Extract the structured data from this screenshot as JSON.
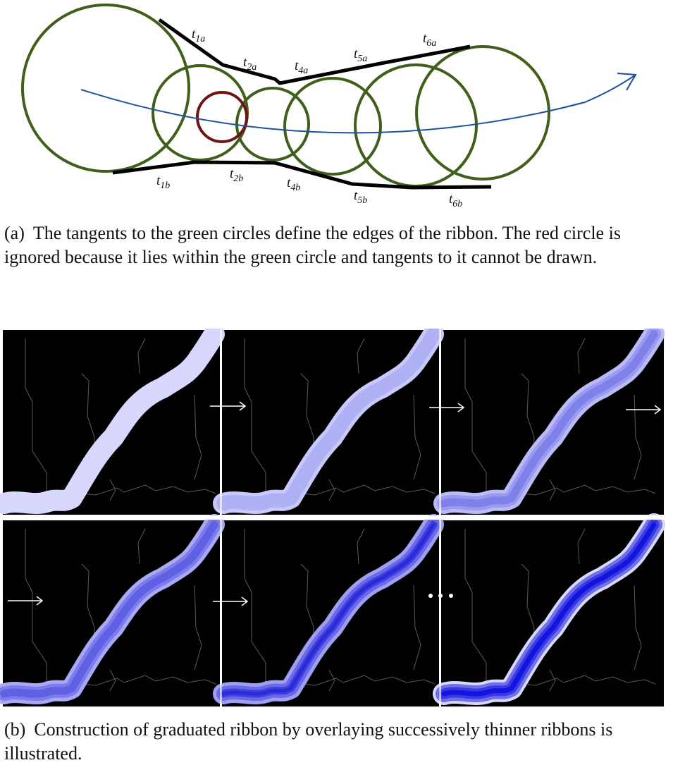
{
  "diagram": {
    "tangent_labels": [
      {
        "t": "t",
        "sub": "1a"
      },
      {
        "t": "t",
        "sub": "2a"
      },
      {
        "t": "t",
        "sub": "4a"
      },
      {
        "t": "t",
        "sub": "5a"
      },
      {
        "t": "t",
        "sub": "6a"
      },
      {
        "t": "t",
        "sub": "1b"
      },
      {
        "t": "t",
        "sub": "2b"
      },
      {
        "t": "t",
        "sub": "4b"
      },
      {
        "t": "t",
        "sub": "5b"
      },
      {
        "t": "t",
        "sub": "6b"
      }
    ],
    "colors": {
      "green_circle": "#3f5f1a",
      "red_circle": "#6e1414",
      "tangent": "#000000",
      "path_arrow": "#1f4fa0"
    }
  },
  "caption_a": {
    "tag": "(a)",
    "text": "The tangents to the green circles define the edges of the ribbon. The red circle is ignored because it lies within the green circle and tangents to it cannot be drawn."
  },
  "panels": {
    "background": "#000000",
    "ribbon_light": "#d8d8ff",
    "ribbon_dark": "#1414e0",
    "ellipsis": "..."
  },
  "caption_b": {
    "tag": "(b)",
    "text": "Construction of graduated ribbon by overlaying successively thinner ribbons is illustrated."
  }
}
